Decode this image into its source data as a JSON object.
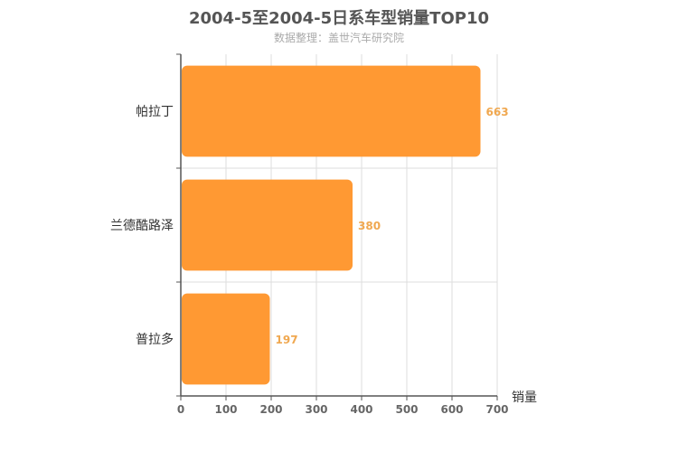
{
  "chart_data": {
    "type": "bar",
    "orientation": "horizontal",
    "title": "2004-5至2004-5日系车型销量TOP10",
    "subtitle": "数据整理：盖世汽车研究院",
    "xlabel": "销量",
    "ylabel": "",
    "categories": [
      "帕拉丁",
      "兰德酷路泽",
      "普拉多"
    ],
    "values": [
      663,
      380,
      197
    ],
    "xlim": [
      0,
      700
    ],
    "xticks": [
      0,
      100,
      200,
      300,
      400,
      500,
      600,
      700
    ],
    "grid": true,
    "bar_color": "#ff9933",
    "label_color": "#f0a850"
  }
}
